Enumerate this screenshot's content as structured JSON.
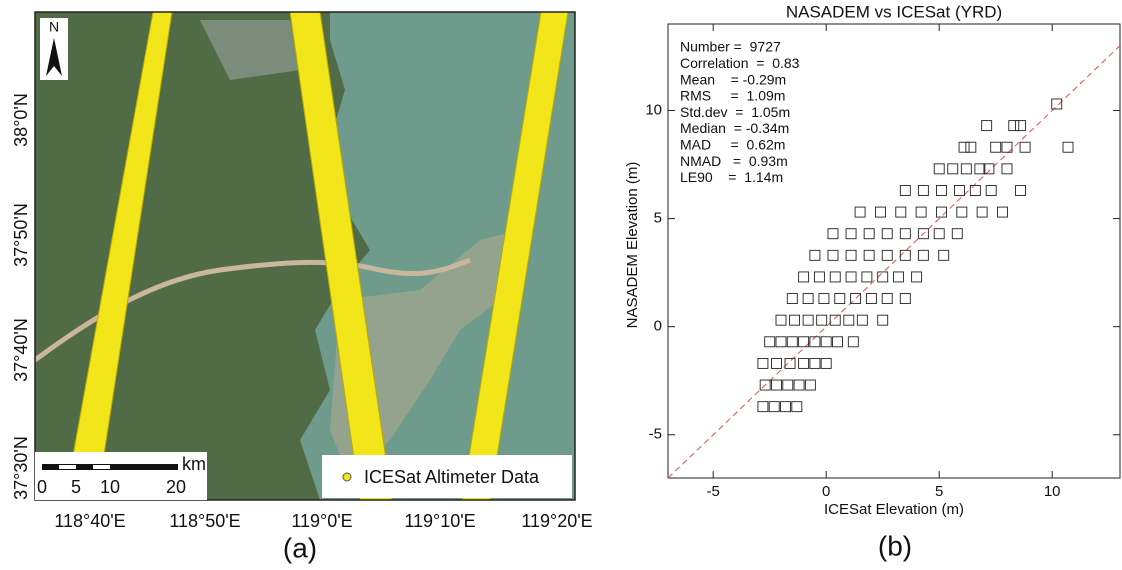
{
  "map": {
    "north": "N",
    "lat_labels": [
      "38°0'N",
      "37°50'N",
      "37°40'N",
      "37°30'N"
    ],
    "lon_labels": [
      "118°40'E",
      "118°50'E",
      "119°0'E",
      "119°10'E",
      "119°20'E"
    ],
    "scale_unit": "km",
    "scale_labels": [
      "0",
      "5",
      "10",
      "20"
    ],
    "legend": "ICESat Altimeter Data",
    "panel_label": "(a)"
  },
  "chart_data": {
    "type": "scatter",
    "title": "NASADEM vs ICESat (YRD)",
    "x_label": "ICESat Elevation (m)",
    "y_label": "NASADEM Elevation (m)",
    "panel_label": "(b)",
    "stats": [
      "Number =  9727",
      "Correlation  =  0.83",
      "Mean    = -0.29m",
      "RMS     =  1.09m",
      "Std.dev  =  1.05m",
      "Median  = -0.34m",
      "MAD     =  0.62m",
      "NMAD   =  0.93m",
      "LE90    =  1.14m"
    ],
    "xlim": [
      -7,
      13
    ],
    "ylim": [
      -7,
      14
    ],
    "xticks": [
      -5,
      0,
      5,
      10
    ],
    "yticks": [
      -5,
      0,
      5,
      10
    ],
    "marker_color": "#222222",
    "reference_line_color": "#e05050",
    "x": [
      -2.8,
      -2.3,
      -1.8,
      -1.3,
      -2.7,
      -2.2,
      -1.7,
      -1.2,
      -0.7,
      -2.8,
      -2.2,
      -1.6,
      -1.0,
      -0.5,
      0.0,
      -2.5,
      -2.0,
      -1.5,
      -1.0,
      -0.5,
      0.0,
      0.5,
      1.2,
      -2.0,
      -1.4,
      -0.8,
      -0.2,
      0.4,
      1.0,
      1.6,
      2.5,
      -1.5,
      -0.8,
      -0.1,
      0.6,
      1.3,
      2.0,
      2.7,
      3.5,
      -1.0,
      -0.3,
      0.4,
      1.1,
      1.8,
      2.5,
      3.2,
      4.0,
      -0.5,
      0.3,
      1.1,
      1.9,
      2.7,
      3.5,
      4.3,
      5.2,
      0.3,
      1.1,
      1.9,
      2.7,
      3.5,
      4.3,
      5.0,
      5.8,
      1.5,
      2.4,
      3.3,
      4.2,
      5.1,
      6.0,
      6.9,
      7.8,
      3.5,
      4.3,
      5.1,
      5.9,
      6.6,
      7.3,
      8.6,
      5.0,
      5.6,
      6.2,
      6.8,
      7.2,
      8.0,
      6.1,
      6.4,
      7.5,
      8.0,
      8.8,
      10.7,
      7.1,
      8.3,
      8.6,
      10.2
    ],
    "values": [
      -3.7,
      -3.7,
      -3.7,
      -3.7,
      -2.7,
      -2.7,
      -2.7,
      -2.7,
      -2.7,
      -1.7,
      -1.7,
      -1.7,
      -1.7,
      -1.7,
      -1.7,
      -0.7,
      -0.7,
      -0.7,
      -0.7,
      -0.7,
      -0.7,
      -0.7,
      -0.7,
      0.3,
      0.3,
      0.3,
      0.3,
      0.3,
      0.3,
      0.3,
      0.3,
      1.3,
      1.3,
      1.3,
      1.3,
      1.3,
      1.3,
      1.3,
      1.3,
      2.3,
      2.3,
      2.3,
      2.3,
      2.3,
      2.3,
      2.3,
      2.3,
      3.3,
      3.3,
      3.3,
      3.3,
      3.3,
      3.3,
      3.3,
      3.3,
      4.3,
      4.3,
      4.3,
      4.3,
      4.3,
      4.3,
      4.3,
      4.3,
      5.3,
      5.3,
      5.3,
      5.3,
      5.3,
      5.3,
      5.3,
      5.3,
      6.3,
      6.3,
      6.3,
      6.3,
      6.3,
      6.3,
      6.3,
      7.3,
      7.3,
      7.3,
      7.3,
      7.3,
      7.3,
      8.3,
      8.3,
      8.3,
      8.3,
      8.3,
      8.3,
      9.3,
      9.3,
      9.3,
      10.3
    ]
  }
}
